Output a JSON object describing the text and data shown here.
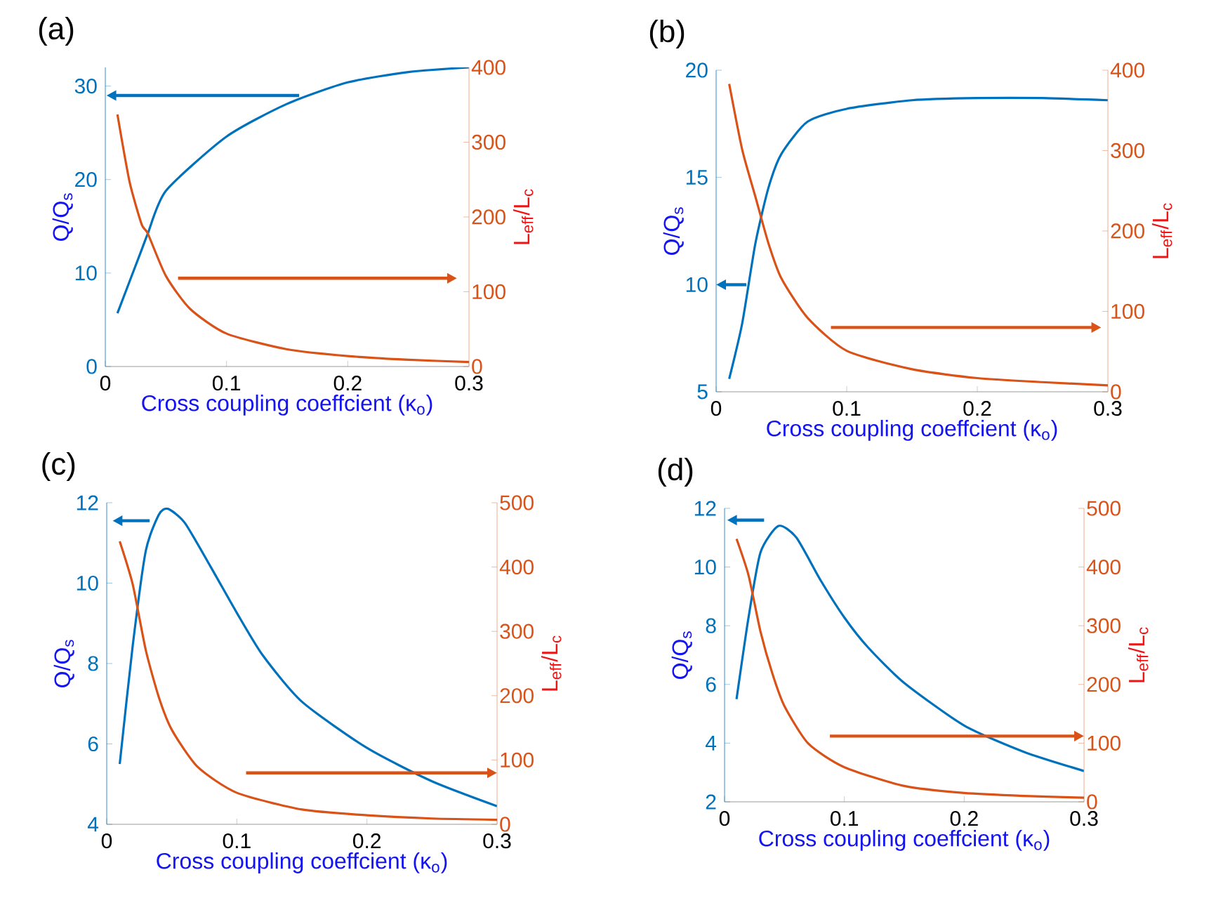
{
  "chart_data": [
    {
      "type": "line",
      "title": "(a)",
      "xlabel": "Cross coupling coeffcient (κ$_{o}$)",
      "ylabel": "Q/Q$_{s}$",
      "y2label": "L$_{eff}$/L$_{c}$",
      "xlim": [
        0,
        0.3
      ],
      "xticks": [
        0,
        0.1,
        0.2,
        0.3
      ],
      "ylim": [
        0,
        32
      ],
      "yticks": [
        0,
        10,
        20,
        30
      ],
      "y2lim": [
        0,
        400
      ],
      "y2ticks": [
        0,
        100,
        200,
        300,
        400
      ],
      "grid": false,
      "marker": "none",
      "series": [
        {
          "color": "#0072bd",
          "x": [
            0.01,
            0.03,
            0.035,
            0.05,
            0.1,
            0.15,
            0.2,
            0.25,
            0.3
          ],
          "values": [
            5.7,
            12.5,
            14.2,
            18.8,
            24.6,
            28.1,
            30.4,
            31.5,
            32.0
          ]
        },
        {
          "color": "#d95319",
          "axis": "y2",
          "x": [
            0.01,
            0.02,
            0.03,
            0.035,
            0.05,
            0.07,
            0.1,
            0.15,
            0.2,
            0.25,
            0.3
          ],
          "values": [
            337,
            247,
            190,
            178,
            121,
            77,
            44,
            23,
            14,
            9,
            6
          ]
        }
      ]
    },
    {
      "type": "line",
      "title": "(b)",
      "xlabel": "Cross coupling coeffcient (κ$_{o}$)",
      "ylabel": "Q/Q$_{s}$",
      "y2label": "L$_{eff}$/L$_{c}$",
      "xlim": [
        0,
        0.3
      ],
      "xticks": [
        0,
        0.1,
        0.2,
        0.3
      ],
      "ylim": [
        5,
        20
      ],
      "yticks": [
        5,
        10,
        15,
        20
      ],
      "y2lim": [
        0,
        400
      ],
      "y2ticks": [
        0,
        100,
        200,
        300,
        400
      ],
      "grid": false,
      "marker": "none",
      "series": [
        {
          "color": "#0072bd",
          "x": [
            0.01,
            0.02,
            0.03,
            0.04,
            0.05,
            0.07,
            0.1,
            0.15,
            0.2,
            0.25,
            0.3
          ],
          "values": [
            5.6,
            8.2,
            11.9,
            14.5,
            16.1,
            17.6,
            18.2,
            18.6,
            18.7,
            18.7,
            18.6
          ]
        },
        {
          "color": "#d95319",
          "axis": "y2",
          "x": [
            0.01,
            0.02,
            0.03,
            0.04,
            0.05,
            0.07,
            0.1,
            0.15,
            0.2,
            0.25,
            0.3
          ],
          "values": [
            383,
            301,
            243,
            185,
            141,
            92,
            51,
            28,
            17,
            12,
            8
          ]
        }
      ]
    },
    {
      "type": "line",
      "title": "(c)",
      "xlabel": "Cross coupling coeffcient (κ$_{o}$)",
      "ylabel": "Q/Q$_{s}$",
      "y2label": "L$_{eff}$/L$_{c}$",
      "xlim": [
        0,
        0.3
      ],
      "xticks": [
        0,
        0.1,
        0.2,
        0.3
      ],
      "ylim": [
        4,
        12
      ],
      "yticks": [
        4,
        6,
        8,
        10,
        12
      ],
      "y2lim": [
        0,
        500
      ],
      "y2ticks": [
        0,
        100,
        200,
        300,
        400,
        500
      ],
      "grid": false,
      "marker": "none",
      "series": [
        {
          "color": "#0072bd",
          "x": [
            0.01,
            0.02,
            0.03,
            0.04,
            0.047,
            0.06,
            0.08,
            0.1,
            0.12,
            0.15,
            0.2,
            0.25,
            0.3
          ],
          "values": [
            5.5,
            8.45,
            10.8,
            11.7,
            11.85,
            11.5,
            10.4,
            9.26,
            8.2,
            7.05,
            5.9,
            5.07,
            4.45
          ]
        },
        {
          "color": "#d95319",
          "axis": "y2",
          "x": [
            0.01,
            0.02,
            0.03,
            0.04,
            0.05,
            0.07,
            0.1,
            0.15,
            0.2,
            0.25,
            0.3
          ],
          "values": [
            440,
            373,
            271,
            198,
            147,
            89,
            49,
            23,
            14,
            9,
            7
          ]
        }
      ]
    },
    {
      "type": "line",
      "title": "(d)",
      "xlabel": "Cross coupling coeffcient (κ$_{o}$)",
      "ylabel": "Q/Q$_{s}$",
      "y2label": "L$_{eff}$/L$_{c}$",
      "xlim": [
        0,
        0.3
      ],
      "xticks": [
        0,
        0.1,
        0.2,
        0.3
      ],
      "ylim": [
        2,
        12
      ],
      "yticks": [
        2,
        4,
        6,
        8,
        10,
        12
      ],
      "y2lim": [
        0,
        500
      ],
      "y2ticks": [
        0,
        100,
        200,
        300,
        400,
        500
      ],
      "grid": false,
      "marker": "none",
      "series": [
        {
          "color": "#0072bd",
          "x": [
            0.01,
            0.02,
            0.03,
            0.045,
            0.06,
            0.08,
            0.1,
            0.12,
            0.15,
            0.2,
            0.25,
            0.3
          ],
          "values": [
            5.5,
            8.28,
            10.5,
            11.4,
            11.0,
            9.56,
            8.28,
            7.25,
            6.05,
            4.6,
            3.7,
            3.05
          ]
        },
        {
          "color": "#d95319",
          "axis": "y2",
          "x": [
            0.01,
            0.02,
            0.03,
            0.04,
            0.05,
            0.07,
            0.1,
            0.15,
            0.2,
            0.25,
            0.3
          ],
          "values": [
            448,
            386,
            290,
            218,
            163,
            99,
            59,
            27,
            15,
            10,
            7
          ]
        }
      ]
    }
  ]
}
